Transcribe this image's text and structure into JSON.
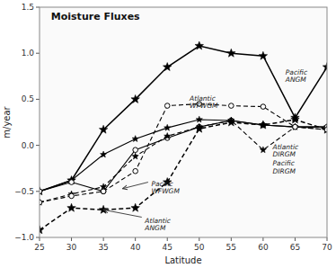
{
  "chart_data": {
    "type": "line",
    "title": "Moisture Fluxes",
    "x_label": "Latitude",
    "y_label": "m/year",
    "x": [
      25,
      30,
      35,
      40,
      45,
      50,
      55,
      60,
      65,
      70
    ],
    "xlim": [
      25,
      70
    ],
    "ylim": [
      -1.0,
      1.5
    ],
    "xticks": [
      25,
      30,
      35,
      40,
      45,
      50,
      55,
      60,
      65,
      70
    ],
    "yticks": [
      {
        "value": -1.0,
        "label": "−1.0"
      },
      {
        "value": -0.5,
        "label": "−0.5"
      },
      {
        "value": 0.0,
        "label": "0.0"
      },
      0.5,
      {
        "value": 1.0,
        "label": "1.0"
      },
      1.5
    ],
    "grid": false,
    "series": [
      {
        "color": "#000000",
        "marker": "star",
        "line_style": "solid",
        "values": [
          -0.5,
          -0.38,
          0.17,
          0.5,
          0.85,
          1.08,
          1.0,
          0.97,
          0.3,
          0.85
        ]
      },
      {
        "color": "#000000",
        "marker": "star",
        "line_style": "solid",
        "values": [
          -0.5,
          -0.38,
          -0.1,
          0.07,
          0.19,
          0.28,
          0.27,
          0.22,
          0.2,
          0.2
        ]
      },
      {
        "color": "#000000",
        "marker": "circle",
        "line_style": "solid",
        "values": [
          -0.5,
          -0.4,
          -0.5,
          -0.05,
          0.08,
          0.2,
          0.27,
          0.22,
          0.2,
          0.2
        ]
      },
      {
        "color": "#000000",
        "marker": "star",
        "line_style": "dashed",
        "values": [
          -0.92,
          -0.68,
          -0.7,
          -0.68,
          -0.4,
          0.18,
          0.25,
          0.22,
          0.28,
          0.17
        ]
      },
      {
        "color": "#000000",
        "marker": "star",
        "line_style": "dashed",
        "values": [
          -0.62,
          -0.53,
          -0.45,
          -0.12,
          0.1,
          0.2,
          0.27,
          -0.05,
          0.2,
          0.17
        ]
      },
      {
        "color": "#000000",
        "marker": "circle",
        "line_style": "dashed",
        "values": [
          -0.62,
          -0.55,
          -0.5,
          -0.28,
          0.43,
          0.45,
          0.43,
          0.42,
          0.2,
          0.17
        ]
      }
    ],
    "annotations": [
      {
        "text": "Pacific\nANGM",
        "x": 63.5,
        "y": 0.83
      },
      {
        "text": "Atlantic\nWFWGM",
        "x": 48.5,
        "y": 0.55
      },
      {
        "text": "Pacific\nWFWGM",
        "x": 42.5,
        "y": -0.38,
        "arrow": {
          "from": [
            42.0,
            -0.4
          ],
          "to": [
            38,
            -0.47
          ]
        }
      },
      {
        "text": "Atlantic\nANGM",
        "x": 41.5,
        "y": -0.78,
        "arrow": {
          "from": [
            41.0,
            -0.78
          ],
          "to": [
            35,
            -0.7
          ]
        }
      },
      {
        "text": "Atlantic\nDIRGM",
        "x": 61.5,
        "y": 0.02
      },
      {
        "text": "Pacific\nDIRGM",
        "x": 61.5,
        "y": -0.16
      }
    ]
  }
}
